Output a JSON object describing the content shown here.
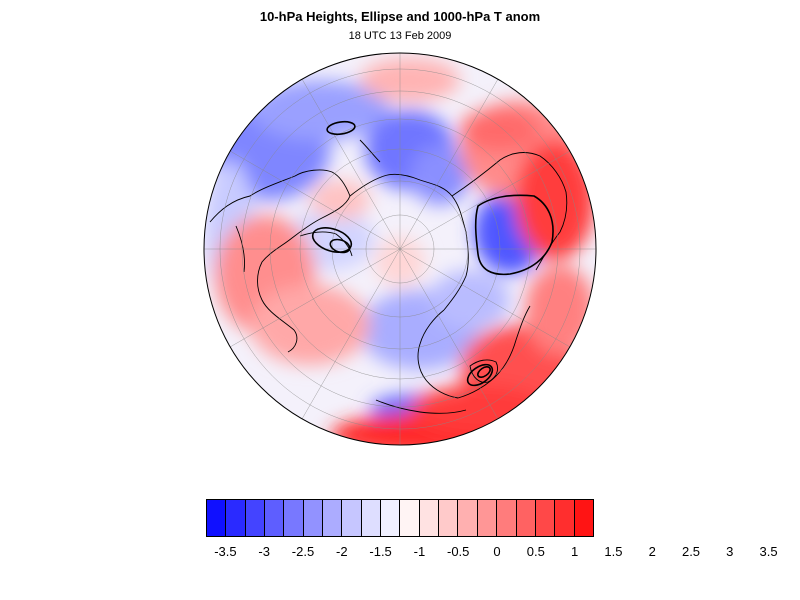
{
  "header": {
    "title": "10-hPa Heights, Ellipse and 1000-hPa T anom",
    "subtitle": "18 UTC 13 Feb 2009"
  },
  "colorbar": {
    "colors": [
      "#1010ff",
      "#2a2aff",
      "#4444ff",
      "#5e5eff",
      "#7878ff",
      "#9292ff",
      "#acacff",
      "#c6c6ff",
      "#dedeff",
      "#f0f0ff",
      "#fff4f4",
      "#ffe2e2",
      "#ffcaca",
      "#ffb0b0",
      "#ff9696",
      "#ff7c7c",
      "#ff6262",
      "#ff4848",
      "#ff2e2e",
      "#ff1414"
    ],
    "labels": [
      "-3.5",
      "-3",
      "-2.5",
      "-2",
      "-1.5",
      "-1",
      "-0.5",
      "0",
      "0.5",
      "1",
      "1.5",
      "2",
      "2.5",
      "3",
      "3.5"
    ]
  },
  "map": {
    "projection": "polar orthographic, north pole centered",
    "field": "1000-hPa T anom",
    "contours": "10-hPa Heights",
    "overlay": "Ellipse"
  }
}
